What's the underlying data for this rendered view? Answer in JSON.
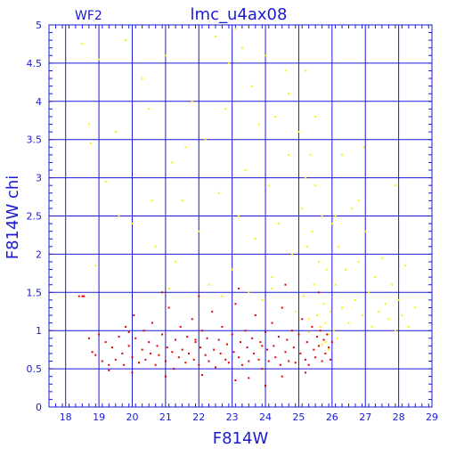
{
  "chart_data": {
    "type": "scatter",
    "title": "lmc_u4ax08",
    "corner_label": "WF2",
    "xlabel": "F814W",
    "ylabel": "F814W chi",
    "xlim": [
      17.5,
      29
    ],
    "ylim": [
      0,
      5
    ],
    "xticks": [
      18,
      19,
      20,
      21,
      22,
      23,
      24,
      25,
      26,
      27,
      28,
      29
    ],
    "yticks": [
      0,
      0.5,
      1,
      1.5,
      2,
      2.5,
      3,
      3.5,
      4,
      4.5,
      5
    ],
    "ytick_labels": [
      "0",
      "0.5",
      "1",
      "1.5",
      "2",
      "2.5",
      "3",
      "3.5",
      "4",
      "4.5",
      "5"
    ],
    "grid": true,
    "colors": {
      "axes": "#1a1ad6",
      "series_red": "#e00000",
      "series_yellow": "#ffee00"
    },
    "series": [
      {
        "color": "red",
        "points": [
          [
            18.4,
            1.45
          ],
          [
            18.5,
            1.45
          ],
          [
            18.55,
            1.45
          ],
          [
            18.7,
            0.9
          ],
          [
            18.8,
            0.72
          ],
          [
            18.9,
            0.68
          ],
          [
            19.0,
            0.95
          ],
          [
            19.1,
            0.6
          ],
          [
            19.2,
            0.85
          ],
          [
            19.3,
            0.55
          ],
          [
            19.4,
            0.78
          ],
          [
            19.5,
            0.62
          ],
          [
            19.6,
            0.92
          ],
          [
            19.7,
            0.7
          ],
          [
            19.75,
            0.55
          ],
          [
            19.8,
            1.05
          ],
          [
            19.9,
            0.8
          ],
          [
            20.0,
            0.65
          ],
          [
            20.05,
            1.2
          ],
          [
            20.1,
            0.9
          ],
          [
            20.2,
            0.58
          ],
          [
            20.3,
            0.75
          ],
          [
            20.35,
            1.0
          ],
          [
            20.4,
            0.62
          ],
          [
            20.5,
            0.85
          ],
          [
            20.55,
            0.7
          ],
          [
            20.6,
            1.1
          ],
          [
            20.7,
            0.55
          ],
          [
            20.75,
            0.8
          ],
          [
            20.8,
            0.68
          ],
          [
            20.9,
            0.95
          ],
          [
            21.0,
            0.6
          ],
          [
            21.05,
            0.78
          ],
          [
            21.1,
            1.3
          ],
          [
            21.2,
            0.72
          ],
          [
            21.25,
            0.5
          ],
          [
            21.3,
            0.88
          ],
          [
            21.4,
            0.65
          ],
          [
            21.45,
            1.05
          ],
          [
            21.5,
            0.75
          ],
          [
            21.6,
            0.58
          ],
          [
            21.65,
            0.92
          ],
          [
            21.7,
            0.7
          ],
          [
            21.8,
            1.15
          ],
          [
            21.85,
            0.62
          ],
          [
            21.9,
            0.85
          ],
          [
            22.0,
            0.55
          ],
          [
            22.05,
            0.78
          ],
          [
            22.1,
            1.0
          ],
          [
            22.2,
            0.68
          ],
          [
            22.25,
            0.9
          ],
          [
            22.3,
            0.6
          ],
          [
            22.4,
            1.25
          ],
          [
            22.45,
            0.75
          ],
          [
            22.5,
            0.52
          ],
          [
            22.6,
            0.88
          ],
          [
            22.65,
            0.7
          ],
          [
            22.7,
            1.05
          ],
          [
            22.8,
            0.62
          ],
          [
            22.85,
            0.82
          ],
          [
            22.9,
            0.58
          ],
          [
            23.0,
            0.95
          ],
          [
            23.05,
            0.72
          ],
          [
            23.1,
            1.35
          ],
          [
            23.2,
            0.65
          ],
          [
            23.25,
            0.85
          ],
          [
            23.3,
            0.55
          ],
          [
            23.4,
            1.0
          ],
          [
            23.45,
            0.78
          ],
          [
            23.5,
            0.6
          ],
          [
            23.6,
            0.9
          ],
          [
            23.65,
            0.7
          ],
          [
            23.7,
            1.2
          ],
          [
            23.8,
            0.62
          ],
          [
            23.85,
            0.85
          ],
          [
            23.9,
            0.5
          ],
          [
            24.0,
            0.98
          ],
          [
            24.05,
            0.75
          ],
          [
            24.1,
            0.6
          ],
          [
            24.2,
            1.1
          ],
          [
            24.25,
            0.8
          ],
          [
            24.3,
            0.65
          ],
          [
            24.4,
            0.92
          ],
          [
            24.45,
            0.55
          ],
          [
            24.5,
            1.3
          ],
          [
            24.6,
            0.72
          ],
          [
            24.65,
            0.88
          ],
          [
            24.7,
            0.6
          ],
          [
            24.8,
            1.0
          ],
          [
            24.85,
            0.78
          ],
          [
            24.9,
            0.58
          ],
          [
            25.0,
            0.95
          ],
          [
            25.05,
            0.7
          ],
          [
            25.1,
            1.15
          ],
          [
            25.2,
            0.62
          ],
          [
            25.25,
            0.85
          ],
          [
            25.3,
            0.55
          ],
          [
            25.4,
            1.05
          ],
          [
            25.45,
            0.75
          ],
          [
            25.5,
            0.65
          ],
          [
            25.55,
            0.92
          ],
          [
            25.6,
            0.8
          ],
          [
            25.65,
            1.0
          ],
          [
            25.7,
            0.6
          ],
          [
            25.75,
            0.88
          ],
          [
            25.8,
            0.7
          ],
          [
            25.85,
            0.95
          ],
          [
            25.9,
            0.78
          ],
          [
            25.95,
            0.62
          ],
          [
            26.0,
            0.85
          ],
          [
            24.0,
            0.28
          ],
          [
            23.1,
            0.35
          ],
          [
            22.1,
            0.42
          ],
          [
            21.0,
            0.4
          ],
          [
            20.0,
            0.45
          ],
          [
            19.3,
            0.48
          ],
          [
            24.5,
            0.4
          ],
          [
            23.5,
            0.38
          ],
          [
            25.2,
            0.45
          ],
          [
            20.9,
            1.5
          ],
          [
            23.2,
            1.55
          ],
          [
            22.0,
            1.45
          ],
          [
            24.6,
            1.6
          ],
          [
            25.6,
            1.5
          ],
          [
            19.9,
            0.98
          ],
          [
            21.9,
            0.88
          ],
          [
            23.9,
            0.8
          ]
        ]
      },
      {
        "color": "yellow",
        "points": [
          [
            18.5,
            4.75
          ],
          [
            18.7,
            3.7
          ],
          [
            18.75,
            3.45
          ],
          [
            19.0,
            4.55
          ],
          [
            19.5,
            3.6
          ],
          [
            19.2,
            2.95
          ],
          [
            19.8,
            4.8
          ],
          [
            20.0,
            2.4
          ],
          [
            20.3,
            4.3
          ],
          [
            20.5,
            3.9
          ],
          [
            20.7,
            2.1
          ],
          [
            21.0,
            4.6
          ],
          [
            21.2,
            3.2
          ],
          [
            21.3,
            1.9
          ],
          [
            21.5,
            2.7
          ],
          [
            21.8,
            4.0
          ],
          [
            22.0,
            2.3
          ],
          [
            22.2,
            3.5
          ],
          [
            22.3,
            1.6
          ],
          [
            22.5,
            4.85
          ],
          [
            22.6,
            2.8
          ],
          [
            22.8,
            3.9
          ],
          [
            23.0,
            1.8
          ],
          [
            23.1,
            4.95
          ],
          [
            23.2,
            2.5
          ],
          [
            23.4,
            3.1
          ],
          [
            23.5,
            1.5
          ],
          [
            23.6,
            4.2
          ],
          [
            23.7,
            2.2
          ],
          [
            23.8,
            3.7
          ],
          [
            23.9,
            1.4
          ],
          [
            24.0,
            4.6
          ],
          [
            24.1,
            2.9
          ],
          [
            24.2,
            1.7
          ],
          [
            24.3,
            3.8
          ],
          [
            24.4,
            2.4
          ],
          [
            24.5,
            1.3
          ],
          [
            24.6,
            4.4
          ],
          [
            24.7,
            3.3
          ],
          [
            24.8,
            2.0
          ],
          [
            24.9,
            1.25
          ],
          [
            25.0,
            3.6
          ],
          [
            25.1,
            2.6
          ],
          [
            25.15,
            1.45
          ],
          [
            25.2,
            3.0
          ],
          [
            25.25,
            2.1
          ],
          [
            25.3,
            1.15
          ],
          [
            25.35,
            3.3
          ],
          [
            25.4,
            2.3
          ],
          [
            25.45,
            1.6
          ],
          [
            25.5,
            2.9
          ],
          [
            25.55,
            1.2
          ],
          [
            25.6,
            1.9
          ],
          [
            25.65,
            1.05
          ],
          [
            25.7,
            2.5
          ],
          [
            25.75,
            1.35
          ],
          [
            25.8,
            1.1
          ],
          [
            25.85,
            1.8
          ],
          [
            25.9,
            0.95
          ],
          [
            25.95,
            1.25
          ],
          [
            26.0,
            2.4
          ],
          [
            26.1,
            1.6
          ],
          [
            26.2,
            2.1
          ],
          [
            26.3,
            1.3
          ],
          [
            26.4,
            1.8
          ],
          [
            26.5,
            1.1
          ],
          [
            26.6,
            2.6
          ],
          [
            26.7,
            1.4
          ],
          [
            26.8,
            1.9
          ],
          [
            26.9,
            1.2
          ],
          [
            27.0,
            2.3
          ],
          [
            27.1,
            1.5
          ],
          [
            27.2,
            1.05
          ],
          [
            27.3,
            1.7
          ],
          [
            27.4,
            1.25
          ],
          [
            27.5,
            1.95
          ],
          [
            27.6,
            1.35
          ],
          [
            27.7,
            1.15
          ],
          [
            27.8,
            1.6
          ],
          [
            27.9,
            1.0
          ],
          [
            28.0,
            1.4
          ],
          [
            28.1,
            1.2
          ],
          [
            28.2,
            1.85
          ],
          [
            28.3,
            1.05
          ],
          [
            28.5,
            1.3
          ],
          [
            26.95,
            3.4
          ],
          [
            26.3,
            3.3
          ],
          [
            26.8,
            2.7
          ],
          [
            27.9,
            2.9
          ],
          [
            26.1,
            2.5
          ],
          [
            25.2,
            4.4
          ],
          [
            25.5,
            3.8
          ],
          [
            24.7,
            4.1
          ],
          [
            23.3,
            4.7
          ],
          [
            22.9,
            4.5
          ],
          [
            21.6,
            3.4
          ],
          [
            20.6,
            2.7
          ],
          [
            19.6,
            2.5
          ],
          [
            18.9,
            1.85
          ],
          [
            21.1,
            1.55
          ],
          [
            22.7,
            1.45
          ],
          [
            24.2,
            1.55
          ],
          [
            25.8,
            0.85
          ],
          [
            25.9,
            0.75
          ],
          [
            25.7,
            0.82
          ],
          [
            26.05,
            1.0
          ],
          [
            26.15,
            0.9
          ],
          [
            25.3,
            0.98
          ]
        ]
      }
    ]
  }
}
